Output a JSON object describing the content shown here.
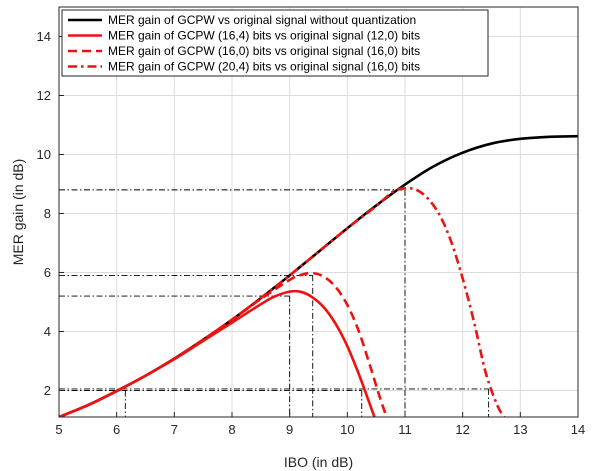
{
  "chart_data": {
    "type": "line",
    "xlabel": "IBO (in dB)",
    "ylabel": "MER gain (in dB)",
    "xlim": [
      5,
      14
    ],
    "ylim": [
      1.1,
      15
    ],
    "xticks": [
      5,
      6,
      7,
      8,
      9,
      10,
      11,
      12,
      13,
      14
    ],
    "yticks": [
      2,
      4,
      6,
      8,
      10,
      12,
      14
    ],
    "grid": true,
    "legend_position": "top-left",
    "colors": {
      "black": "#000000",
      "red": "#ee1111",
      "guide": "#000000"
    },
    "series": [
      {
        "name": "MER gain of GCPW vs original signal without quantization",
        "color": "#000000",
        "dash": "solid",
        "x": [
          5,
          5.5,
          6,
          6.5,
          7,
          7.5,
          8,
          8.5,
          9,
          9.5,
          10,
          10.5,
          11,
          11.5,
          12,
          12.5,
          13,
          13.5,
          14
        ],
        "y": [
          1.1,
          1.5,
          1.98,
          2.5,
          3.08,
          3.72,
          4.4,
          5.13,
          5.9,
          6.7,
          7.5,
          8.27,
          8.98,
          9.6,
          10.06,
          10.37,
          10.53,
          10.6,
          10.62
        ]
      },
      {
        "name": "MER gain of GCPW (16,4) bits vs original signal (12,0) bits",
        "color": "#ee1111",
        "dash": "solid",
        "x": [
          5,
          5.5,
          6,
          6.5,
          7,
          7.5,
          8,
          8.4,
          8.7,
          9,
          9.2,
          9.4,
          9.6,
          9.8,
          10,
          10.2,
          10.35,
          10.47
        ],
        "y": [
          1.1,
          1.5,
          1.98,
          2.5,
          3.06,
          3.68,
          4.3,
          4.8,
          5.15,
          5.35,
          5.34,
          5.15,
          4.8,
          4.25,
          3.5,
          2.55,
          1.75,
          1.1
        ]
      },
      {
        "name": "MER gain of GCPW (16,0) bits vs original signal (16,0) bits",
        "color": "#ee1111",
        "dash": "dashed",
        "x": [
          5,
          5.5,
          6,
          6.5,
          7,
          7.5,
          8,
          8.5,
          9,
          9.2,
          9.4,
          9.6,
          9.8,
          10,
          10.2,
          10.4,
          10.55,
          10.68
        ],
        "y": [
          1.1,
          1.5,
          1.98,
          2.5,
          3.08,
          3.72,
          4.4,
          5.1,
          5.75,
          5.92,
          5.98,
          5.85,
          5.5,
          4.9,
          4.0,
          2.8,
          1.85,
          1.1
        ]
      },
      {
        "name": "MER gain of GCPW (20,4) bits vs original signal (16,0) bits",
        "color": "#ee1111",
        "dash": "dashdot",
        "x": [
          5,
          5.5,
          6,
          6.5,
          7,
          7.5,
          8,
          8.5,
          9,
          9.5,
          10,
          10.5,
          10.8,
          11,
          11.2,
          11.4,
          11.6,
          11.8,
          12,
          12.2,
          12.4,
          12.6,
          12.72
        ],
        "y": [
          1.1,
          1.5,
          1.98,
          2.5,
          3.08,
          3.72,
          4.4,
          5.13,
          5.9,
          6.7,
          7.5,
          8.25,
          8.75,
          8.85,
          8.8,
          8.5,
          7.95,
          7.05,
          5.8,
          4.3,
          2.6,
          1.5,
          1.1
        ]
      }
    ],
    "guides": [
      {
        "x": 6.15,
        "y": 2.0
      },
      {
        "x": 10.25,
        "y": 2.0
      },
      {
        "x": 12.45,
        "y": 2.05
      },
      {
        "x": 9.0,
        "y": 5.2
      },
      {
        "x": 9.4,
        "y": 5.9
      },
      {
        "x": 11.0,
        "y": 8.8
      }
    ]
  }
}
